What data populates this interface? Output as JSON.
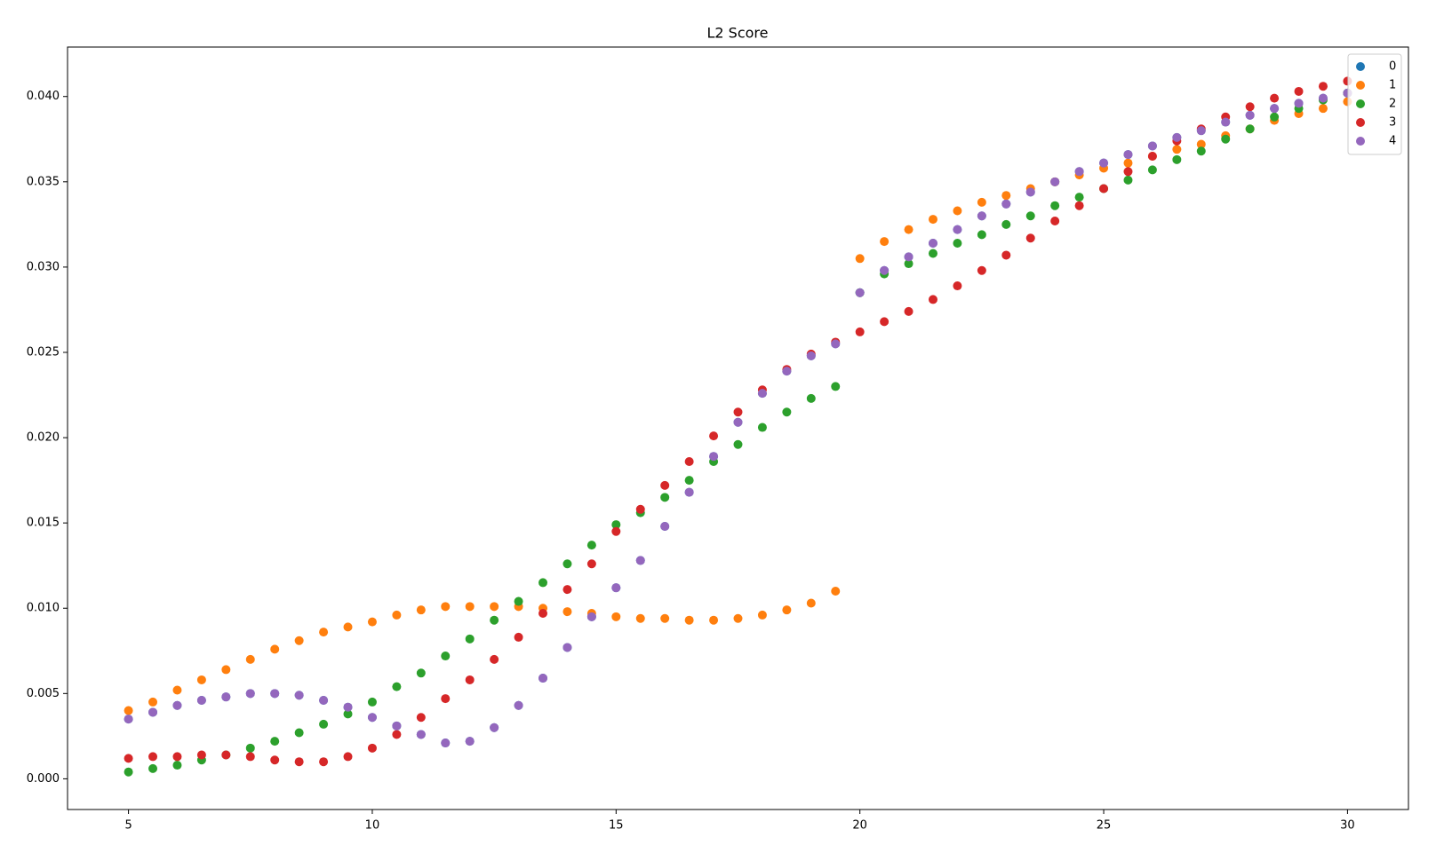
{
  "chart_data": {
    "type": "scatter",
    "title": "L2 Score",
    "x": [
      5,
      5.5,
      6,
      6.5,
      7,
      7.5,
      8,
      8.5,
      9,
      9.5,
      10,
      10.5,
      11,
      11.5,
      12,
      12.5,
      13,
      13.5,
      14,
      14.5,
      15,
      15.5,
      16,
      16.5,
      17,
      17.5,
      18,
      18.5,
      19,
      19.5,
      20,
      20.5,
      21,
      21.5,
      22,
      22.5,
      23,
      23.5,
      24,
      24.5,
      25,
      25.5,
      26,
      26.5,
      27,
      27.5,
      28,
      28.5,
      29,
      29.5,
      30
    ],
    "series": [
      {
        "name": "0",
        "color": "#1f77b4",
        "values": [
          0.0035,
          0.0039,
          0.0043,
          0.0046,
          0.0048,
          0.005,
          0.005,
          0.0049,
          0.0046,
          0.0042,
          0.0036,
          0.0031,
          0.0026,
          0.0021,
          0.0022,
          0.003,
          0.0043,
          0.0059,
          0.0077,
          0.0095,
          0.0112,
          0.0128,
          0.0148,
          0.0168,
          0.0189,
          0.0209,
          0.0226,
          0.0239,
          0.0248,
          0.0255,
          0.0285,
          0.0298,
          0.0306,
          0.0314,
          0.0322,
          0.033,
          0.0337,
          0.0344,
          0.035,
          0.0356,
          0.0361,
          0.0366,
          0.0371,
          0.0376,
          0.038,
          0.0385,
          0.0389,
          0.0393,
          0.0396,
          0.0399,
          0.0402
        ]
      },
      {
        "name": "1",
        "color": "#ff7f0e",
        "values": [
          0.004,
          0.0045,
          0.0052,
          0.0058,
          0.0064,
          0.007,
          0.0076,
          0.0081,
          0.0086,
          0.0089,
          0.0092,
          0.0096,
          0.0099,
          0.0101,
          0.0101,
          0.0101,
          0.0101,
          0.01,
          0.0098,
          0.0097,
          0.0095,
          0.0094,
          0.0094,
          0.0093,
          0.0093,
          0.0094,
          0.0096,
          0.0099,
          0.0103,
          0.011,
          0.0305,
          0.0315,
          0.0322,
          0.0328,
          0.0333,
          0.0338,
          0.0342,
          0.0346,
          0.035,
          0.0354,
          0.0358,
          0.0361,
          0.0365,
          0.0369,
          0.0372,
          0.0377,
          0.0381,
          0.0386,
          0.039,
          0.0393,
          0.0397
        ]
      },
      {
        "name": "2",
        "color": "#2ca02c",
        "values": [
          0.0004,
          0.0006,
          0.0008,
          0.0011,
          0.0014,
          0.0018,
          0.0022,
          0.0027,
          0.0032,
          0.0038,
          0.0045,
          0.0054,
          0.0062,
          0.0072,
          0.0082,
          0.0093,
          0.0104,
          0.0115,
          0.0126,
          0.0137,
          0.0149,
          0.0156,
          0.0165,
          0.0175,
          0.0186,
          0.0196,
          0.0206,
          0.0215,
          0.0223,
          0.023,
          0.0285,
          0.0296,
          0.0302,
          0.0308,
          0.0314,
          0.0319,
          0.0325,
          0.033,
          0.0336,
          0.0341,
          0.0346,
          0.0351,
          0.0357,
          0.0363,
          0.0368,
          0.0375,
          0.0381,
          0.0388,
          0.0393,
          0.0398,
          0.0402
        ]
      },
      {
        "name": "3",
        "color": "#d62728",
        "values": [
          0.0012,
          0.0013,
          0.0013,
          0.0014,
          0.0014,
          0.0013,
          0.0011,
          0.001,
          0.001,
          0.0013,
          0.0018,
          0.0026,
          0.0036,
          0.0047,
          0.0058,
          0.007,
          0.0083,
          0.0097,
          0.0111,
          0.0126,
          0.0145,
          0.0158,
          0.0172,
          0.0186,
          0.0201,
          0.0215,
          0.0228,
          0.024,
          0.0249,
          0.0256,
          0.0262,
          0.0268,
          0.0274,
          0.0281,
          0.0289,
          0.0298,
          0.0307,
          0.0317,
          0.0327,
          0.0336,
          0.0346,
          0.0356,
          0.0365,
          0.0374,
          0.0381,
          0.0388,
          0.0394,
          0.0399,
          0.0403,
          0.0406,
          0.0409
        ]
      },
      {
        "name": "4",
        "color": "#9467bd",
        "values": [
          0.0035,
          0.0039,
          0.0043,
          0.0046,
          0.0048,
          0.005,
          0.005,
          0.0049,
          0.0046,
          0.0042,
          0.0036,
          0.0031,
          0.0026,
          0.0021,
          0.0022,
          0.003,
          0.0043,
          0.0059,
          0.0077,
          0.0095,
          0.0112,
          0.0128,
          0.0148,
          0.0168,
          0.0189,
          0.0209,
          0.0226,
          0.0239,
          0.0248,
          0.0255,
          0.0285,
          0.0298,
          0.0306,
          0.0314,
          0.0322,
          0.033,
          0.0337,
          0.0344,
          0.035,
          0.0356,
          0.0361,
          0.0366,
          0.0371,
          0.0376,
          0.038,
          0.0385,
          0.0389,
          0.0393,
          0.0396,
          0.0399,
          0.0402
        ]
      }
    ],
    "xlim": [
      3.75,
      31.25
    ],
    "xticks": [
      5,
      10,
      15,
      20,
      25,
      30
    ],
    "ylim": [
      -0.0018,
      0.0429
    ],
    "yticks": [
      {
        "value": 0,
        "label": "0.000"
      },
      {
        "value": 0.005,
        "label": "0.005"
      },
      {
        "value": 0.01,
        "label": "0.010"
      },
      {
        "value": 0.015,
        "label": "0.015"
      },
      {
        "value": 0.02,
        "label": "0.020"
      },
      {
        "value": 0.025,
        "label": "0.025"
      },
      {
        "value": 0.03,
        "label": "0.030"
      },
      {
        "value": 0.035,
        "label": "0.035"
      },
      {
        "value": 0.04,
        "label": "0.040"
      }
    ],
    "grid": false,
    "legend": "upper right"
  }
}
